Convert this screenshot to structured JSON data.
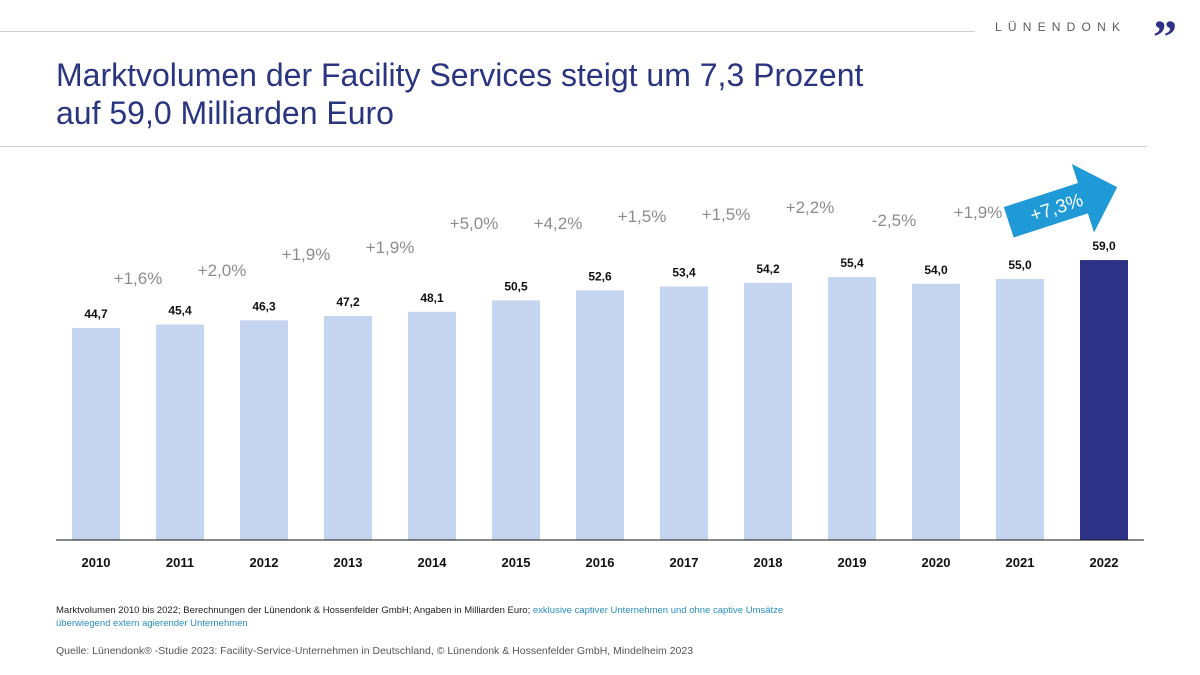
{
  "header": {
    "logo_text": "LÜNENDONK",
    "logo_mark": "”",
    "title_line1": "Marktvolumen der Facility Services steigt um 7,3 Prozent",
    "title_line2": "auf 59,0 Milliarden Euro"
  },
  "chart_data": {
    "type": "bar",
    "title": "Marktvolumen der Facility Services steigt um 7,3 Prozent auf 59,0 Milliarden Euro",
    "xlabel": "",
    "ylabel": "Milliarden Euro",
    "ylim": [
      0,
      60
    ],
    "categories": [
      "2010",
      "2011",
      "2012",
      "2013",
      "2014",
      "2015",
      "2016",
      "2017",
      "2018",
      "2019",
      "2020",
      "2021",
      "2022"
    ],
    "values": [
      44.7,
      45.4,
      46.3,
      47.2,
      48.1,
      50.5,
      52.6,
      53.4,
      54.2,
      55.4,
      54.0,
      55.0,
      59.0
    ],
    "value_labels": [
      "44,7",
      "45,4",
      "46,3",
      "47,2",
      "48,1",
      "50,5",
      "52,6",
      "53,4",
      "54,2",
      "55,4",
      "54,0",
      "55,0",
      "59,0"
    ],
    "growth_labels": [
      "+1,6%",
      "+2,0%",
      "+1,9%",
      "+1,9%",
      "+5,0%",
      "+4,2%",
      "+1,5%",
      "+1,5%",
      "+2,2%",
      "-2,5%",
      "+1,9%"
    ],
    "highlight_label": "+7,3%",
    "colors": {
      "bar": "#c5d5f0",
      "highlight_bar": "#2e3388",
      "arrow": "#1f9ad6",
      "growth_text": "#8c8c8c"
    }
  },
  "footer": {
    "note_dark": "Marktvolumen 2010 bis 2022; Berechnungen der Lünendonk & Hossenfelder GmbH; Angaben in Milliarden Euro;",
    "note_teal": "exklusive captiver Unternehmen und ohne captive Umsätze überwiegend extern agierender Unternehmen",
    "source": "Quelle: Lünendonk® -Studie 2023: Facility-Service-Unternehmen in Deutschland, © Lünendonk & Hossenfelder GmbH, Mindelheim 2023"
  }
}
